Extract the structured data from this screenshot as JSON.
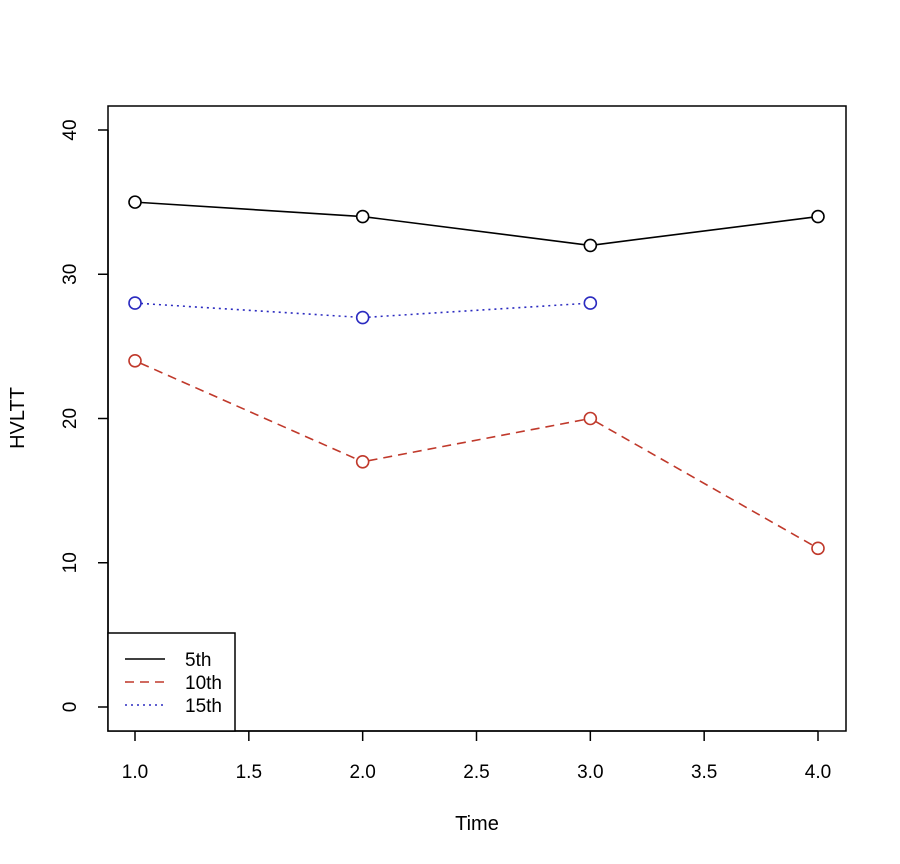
{
  "chart_data": {
    "type": "line",
    "title": "",
    "xlabel": "Time",
    "ylabel": "HVLTT",
    "xlim": [
      1.0,
      4.0
    ],
    "ylim": [
      0,
      40
    ],
    "x_ticks": [
      1.0,
      1.5,
      2.0,
      2.5,
      3.0,
      3.5,
      4.0
    ],
    "x_tick_labels": [
      "1.0",
      "1.5",
      "2.0",
      "2.5",
      "3.0",
      "3.5",
      "4.0"
    ],
    "y_ticks": [
      0,
      10,
      20,
      30,
      40
    ],
    "y_tick_labels": [
      "0",
      "10",
      "20",
      "30",
      "40"
    ],
    "grid": false,
    "legend_position": "bottom-left",
    "markers": "open-circle",
    "series": [
      {
        "name": "5th",
        "x": [
          1.0,
          2.0,
          3.0,
          4.0
        ],
        "values": [
          35,
          34,
          32,
          34
        ],
        "color": "#000000",
        "line_style": "solid"
      },
      {
        "name": "10th",
        "x": [
          1.0,
          2.0,
          3.0,
          4.0
        ],
        "values": [
          24,
          17,
          20,
          11
        ],
        "color": "#c0392b",
        "line_style": "dashed"
      },
      {
        "name": "15th",
        "x": [
          1.0,
          2.0,
          3.0
        ],
        "values": [
          28,
          27,
          28
        ],
        "color": "#2b2bc0",
        "line_style": "dotted"
      }
    ]
  }
}
